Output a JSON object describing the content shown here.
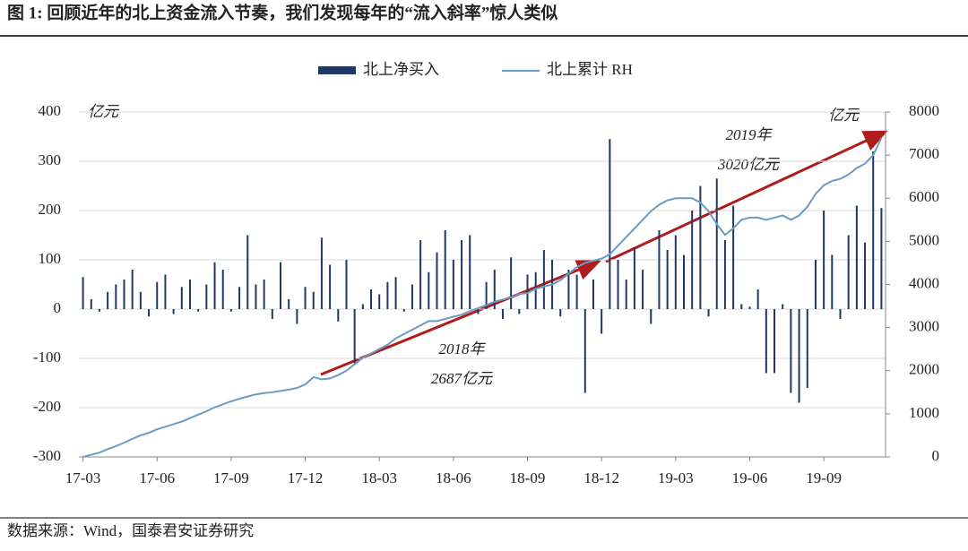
{
  "chart_data": {
    "type": "bar-line",
    "title": "图 1:  回顾近年的北上资金流入节奏，我们发现每年的“流入斜率”惊人类似",
    "source": "数据来源：Wind，国泰君安证券研究",
    "unit_left": "亿元",
    "unit_right": "亿元",
    "annotations": [
      "2018年",
      "2687亿元",
      "2019年",
      "3020亿元"
    ],
    "categories": [
      "17-03",
      null,
      null,
      null,
      null,
      null,
      null,
      null,
      null,
      "17-06",
      null,
      null,
      null,
      null,
      null,
      null,
      null,
      null,
      "17-09",
      null,
      null,
      null,
      null,
      null,
      null,
      null,
      null,
      "17-12",
      null,
      null,
      null,
      null,
      null,
      null,
      null,
      null,
      "18-03",
      null,
      null,
      null,
      null,
      null,
      null,
      null,
      null,
      "18-06",
      null,
      null,
      null,
      null,
      null,
      null,
      null,
      null,
      "18-09",
      null,
      null,
      null,
      null,
      null,
      null,
      null,
      null,
      "18-12",
      null,
      null,
      null,
      null,
      null,
      null,
      null,
      null,
      "19-03",
      null,
      null,
      null,
      null,
      null,
      null,
      null,
      null,
      "19-06",
      null,
      null,
      null,
      null,
      null,
      null,
      null,
      null,
      "19-09",
      null,
      null,
      null,
      null,
      null,
      null,
      null
    ],
    "series": [
      {
        "name": "北上净买入",
        "color": "#1f3864",
        "values": [
          65,
          20,
          -5,
          35,
          50,
          60,
          80,
          35,
          -15,
          55,
          70,
          -10,
          45,
          60,
          -5,
          50,
          95,
          80,
          -5,
          45,
          150,
          50,
          60,
          -20,
          95,
          20,
          -30,
          45,
          35,
          145,
          90,
          -25,
          100,
          -110,
          10,
          40,
          30,
          55,
          65,
          -5,
          50,
          140,
          75,
          115,
          160,
          100,
          140,
          150,
          -10,
          55,
          80,
          -20,
          105,
          -10,
          70,
          75,
          120,
          100,
          -15,
          80,
          70,
          -170,
          60,
          -50,
          345,
          100,
          60,
          125,
          80,
          -30,
          160,
          120,
          150,
          110,
          200,
          250,
          -15,
          265,
          140,
          210,
          10,
          5,
          40,
          -130,
          -130,
          10,
          -170,
          -190,
          -160,
          100,
          200,
          110,
          -20,
          150,
          210,
          135,
          320,
          205
        ]
      },
      {
        "name": "北上累计 RH",
        "color": "#6a9bc3",
        "axis": "y2",
        "values": [
          0,
          50,
          100,
          180,
          250,
          330,
          420,
          500,
          560,
          640,
          700,
          760,
          820,
          900,
          980,
          1060,
          1150,
          1220,
          1290,
          1350,
          1400,
          1450,
          1480,
          1500,
          1530,
          1560,
          1600,
          1680,
          1850,
          1800,
          1820,
          1900,
          2000,
          2150,
          2300,
          2400,
          2500,
          2600,
          2750,
          2850,
          2950,
          3050,
          3150,
          3150,
          3200,
          3250,
          3300,
          3380,
          3450,
          3520,
          3600,
          3650,
          3700,
          3780,
          3800,
          3900,
          3950,
          4000,
          4100,
          4250,
          4400,
          4500,
          4550,
          4600,
          4700,
          4900,
          5100,
          5300,
          5500,
          5700,
          5850,
          5950,
          6000,
          6000,
          6000,
          5900,
          5700,
          5400,
          5150,
          5300,
          5500,
          5550,
          5550,
          5500,
          5550,
          5600,
          5500,
          5600,
          5800,
          6100,
          6300,
          6400,
          6450,
          6550,
          6700,
          6800,
          7000,
          7400
        ]
      }
    ],
    "ylim": [
      -300,
      400
    ],
    "yticks": [
      -300,
      -200,
      -100,
      0,
      100,
      200,
      300,
      400
    ],
    "y2lim": [
      0,
      8000
    ],
    "y2ticks": [
      0,
      1000,
      2000,
      3000,
      4000,
      5000,
      6000,
      7000,
      8000
    ],
    "grid": true
  }
}
